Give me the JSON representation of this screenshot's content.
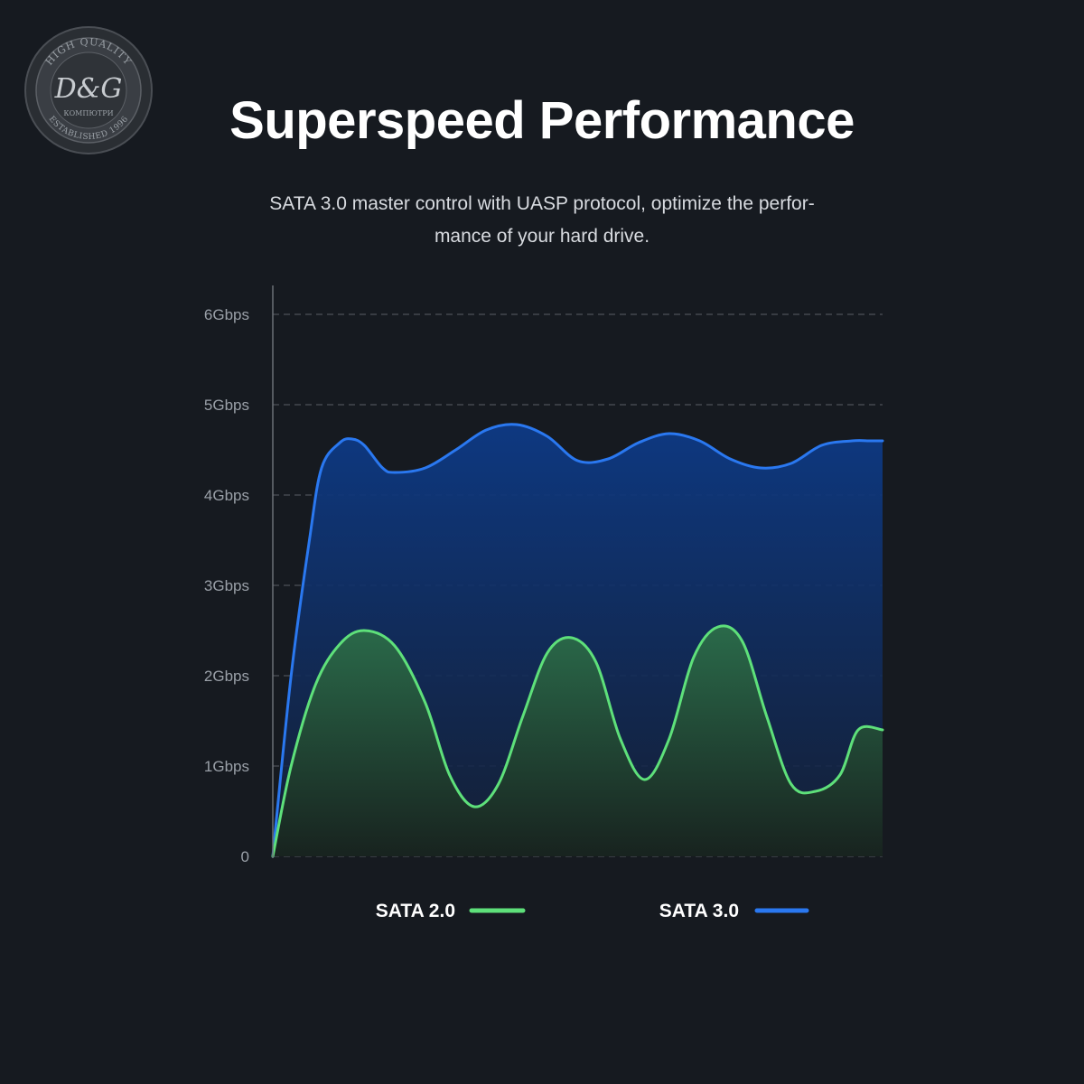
{
  "header": {
    "title": "Superspeed Performance",
    "subtitle_line1": "SATA 3.0 master control with UASP protocol, optimize the perfor-",
    "subtitle_line2": "mance of your hard drive."
  },
  "watermark": {
    "logo_text": "D&G",
    "ring_top": "HIGH QUALITY",
    "ring_mid": "КОМПЮТРИ",
    "ring_bottom": "ESTABLISHED 1996"
  },
  "colors": {
    "background": "#161a20",
    "sata2": "#5ee07a",
    "sata3": "#2a78f0",
    "grid": "#5a5f66"
  },
  "chart_data": {
    "type": "area",
    "title": "",
    "xlabel": "",
    "ylabel": "",
    "y_ticks": [
      "0",
      "1Gbps",
      "2Gbps",
      "3Gbps",
      "4Gbps",
      "5Gbps",
      "6Gbps"
    ],
    "ylim": [
      0,
      6.3
    ],
    "xlim": [
      0,
      100
    ],
    "grid": true,
    "legend_position": "bottom",
    "series": [
      {
        "name": "SATA 2.0",
        "color": "#5ee07a",
        "x": [
          0,
          3,
          7,
          11,
          15,
          20,
          25,
          29,
          33,
          37,
          41,
          45,
          49,
          53,
          57,
          61,
          65,
          69,
          73,
          77,
          81,
          85,
          89,
          93,
          96,
          100
        ],
        "y": [
          0,
          1.0,
          1.9,
          2.35,
          2.5,
          2.33,
          1.7,
          0.9,
          0.55,
          0.8,
          1.55,
          2.25,
          2.42,
          2.15,
          1.3,
          0.85,
          1.3,
          2.2,
          2.54,
          2.38,
          1.55,
          0.8,
          0.72,
          0.9,
          1.4,
          1.4
        ]
      },
      {
        "name": "SATA 3.0",
        "color": "#2a78f0",
        "x": [
          0,
          3,
          6,
          8,
          11,
          13,
          15,
          18,
          20,
          25,
          30,
          35,
          40,
          45,
          50,
          55,
          60,
          65,
          70,
          75,
          80,
          85,
          90,
          95,
          98,
          100
        ],
        "y": [
          0,
          2.0,
          3.5,
          4.3,
          4.58,
          4.62,
          4.55,
          4.3,
          4.25,
          4.3,
          4.5,
          4.72,
          4.78,
          4.65,
          4.38,
          4.4,
          4.58,
          4.68,
          4.6,
          4.4,
          4.3,
          4.35,
          4.55,
          4.6,
          4.6,
          4.6
        ]
      }
    ]
  }
}
